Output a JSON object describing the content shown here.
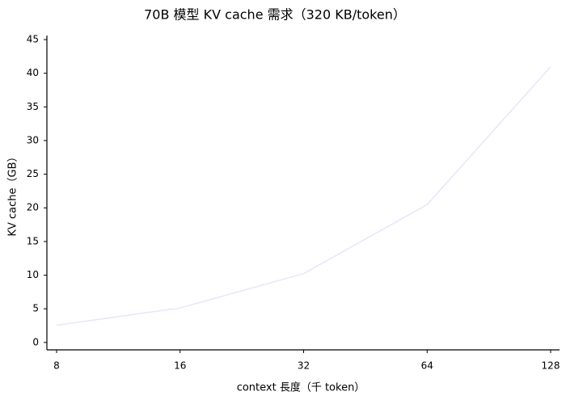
{
  "chart_data": {
    "type": "line",
    "title": "70B 模型 KV cache 需求（320 KB/token）",
    "x_label": "context 長度（千 token）",
    "y_label": "KV cache（GB）",
    "categories": [
      "8",
      "16",
      "32",
      "64",
      "128"
    ],
    "series": [
      {
        "name": "KV cache",
        "color": "#e6e6fa",
        "values": [
          2.56,
          5.12,
          10.24,
          20.48,
          40.96
        ]
      }
    ],
    "ylim": [
      -1.1,
      45.6
    ],
    "yticks": [
      0,
      5,
      10,
      15,
      20,
      25,
      30,
      35,
      40,
      45
    ],
    "grid": false
  }
}
